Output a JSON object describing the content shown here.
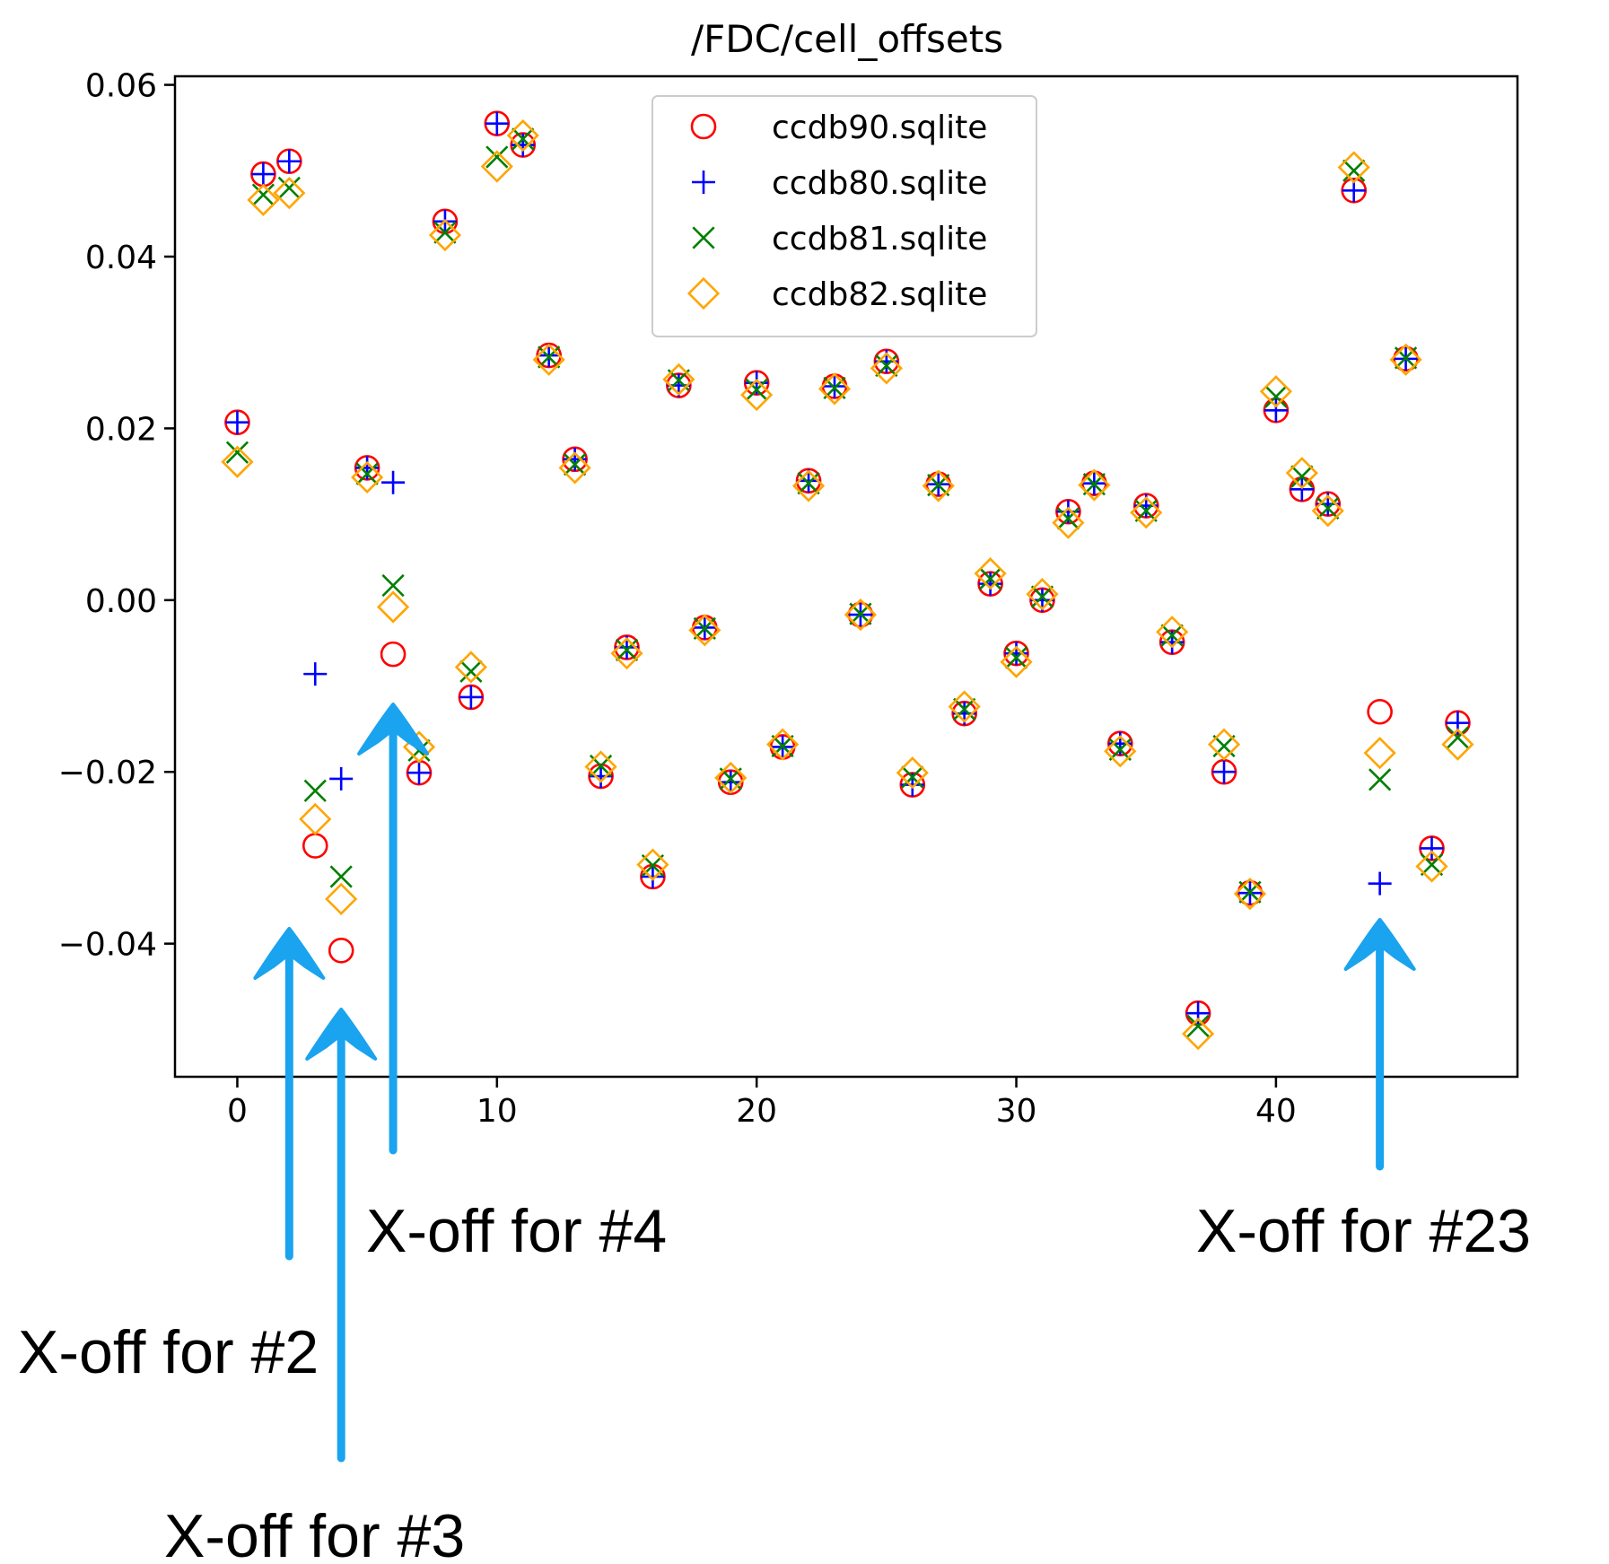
{
  "chart_data": {
    "type": "scatter",
    "title": "/FDC/cell_offsets",
    "xlabel": "",
    "ylabel": "",
    "xlim": [
      -2.4,
      49.3
    ],
    "ylim": [
      -0.0555,
      0.061
    ],
    "xticks": [
      0,
      10,
      20,
      30,
      40
    ],
    "xtick_labels": [
      "0",
      "10",
      "20",
      "30",
      "40"
    ],
    "yticks": [
      -0.04,
      -0.02,
      0.0,
      0.02,
      0.04,
      0.06
    ],
    "ytick_labels": [
      "−0.04",
      "−0.02",
      "0.00",
      "0.02",
      "0.04",
      "0.06"
    ],
    "grid": false,
    "legend_position": "top-center",
    "x": [
      0,
      1,
      2,
      3,
      4,
      5,
      6,
      7,
      8,
      9,
      10,
      11,
      12,
      13,
      14,
      15,
      16,
      17,
      18,
      19,
      20,
      21,
      22,
      23,
      24,
      25,
      26,
      27,
      28,
      29,
      30,
      31,
      32,
      33,
      34,
      35,
      36,
      37,
      38,
      39,
      40,
      41,
      42,
      43,
      44,
      45,
      46,
      47
    ],
    "series": [
      {
        "name": "ccdb90.sqlite",
        "marker": "circle",
        "color": "#ff0000",
        "values": [
          0.0207,
          0.0496,
          0.0511,
          -0.0286,
          -0.0408,
          0.0154,
          -0.0063,
          -0.0201,
          0.0441,
          -0.0113,
          0.0555,
          0.053,
          0.0285,
          0.0164,
          -0.0205,
          -0.0055,
          -0.0322,
          0.025,
          -0.0032,
          -0.0212,
          0.0253,
          -0.0171,
          0.0139,
          0.0249,
          -0.0017,
          0.0278,
          -0.0215,
          0.0135,
          -0.0132,
          0.0019,
          -0.0062,
          0.0,
          0.0103,
          0.0136,
          -0.0167,
          0.011,
          -0.0049,
          -0.0481,
          -0.02,
          -0.0341,
          0.0221,
          0.0129,
          0.0112,
          0.0477,
          -0.013,
          0.0281,
          -0.0289,
          -0.0143
        ]
      },
      {
        "name": "ccdb80.sqlite",
        "marker": "plus",
        "color": "#0000ff",
        "values": [
          0.0207,
          0.0496,
          0.0511,
          -0.0086,
          -0.0208,
          0.0154,
          0.0137,
          -0.0201,
          0.0441,
          -0.0113,
          0.0555,
          0.053,
          0.0285,
          0.0164,
          -0.0205,
          -0.0055,
          -0.0322,
          0.025,
          -0.0032,
          -0.0212,
          0.0253,
          -0.0171,
          0.0139,
          0.0249,
          -0.0017,
          0.0278,
          -0.0215,
          0.0135,
          -0.0132,
          0.0019,
          -0.0062,
          0.0,
          0.0103,
          0.0136,
          -0.0167,
          0.011,
          -0.0049,
          -0.0481,
          -0.02,
          -0.0341,
          0.0221,
          0.0129,
          0.0112,
          0.0477,
          -0.033,
          0.0281,
          -0.0289,
          -0.0143
        ]
      },
      {
        "name": "ccdb81.sqlite",
        "marker": "x",
        "color": "#008000",
        "values": [
          0.0172,
          0.0472,
          0.048,
          -0.0222,
          -0.0322,
          0.0147,
          0.0017,
          -0.0175,
          0.0428,
          -0.0083,
          0.0516,
          0.0537,
          0.0283,
          0.0158,
          -0.0193,
          -0.0058,
          -0.0309,
          0.0256,
          -0.0033,
          -0.0208,
          0.0245,
          -0.017,
          0.0136,
          0.0247,
          -0.0016,
          0.0273,
          -0.0206,
          0.0134,
          -0.0127,
          0.0025,
          -0.0067,
          0.0004,
          0.0095,
          0.0135,
          -0.0174,
          0.0104,
          -0.0041,
          -0.0496,
          -0.017,
          -0.034,
          0.0237,
          0.0144,
          0.0107,
          0.05,
          -0.0209,
          0.0282,
          -0.0308,
          -0.016
        ]
      },
      {
        "name": "ccdb82.sqlite",
        "marker": "diamond",
        "color": "#ffa500",
        "values": [
          0.0161,
          0.0466,
          0.0474,
          -0.0255,
          -0.0348,
          0.0143,
          -0.0008,
          -0.0171,
          0.0425,
          -0.0078,
          0.0505,
          0.0541,
          0.028,
          0.0154,
          -0.0194,
          -0.0062,
          -0.0308,
          0.0257,
          -0.0035,
          -0.0207,
          0.0239,
          -0.0168,
          0.0133,
          0.0246,
          -0.0017,
          0.027,
          -0.0201,
          0.0133,
          -0.0124,
          0.0031,
          -0.0072,
          0.0007,
          0.009,
          0.0134,
          -0.0176,
          0.0102,
          -0.0037,
          -0.0505,
          -0.0168,
          -0.0342,
          0.0243,
          0.0148,
          0.0104,
          0.0504,
          -0.0178,
          0.028,
          -0.031,
          -0.0168
        ]
      }
    ],
    "annotations": [
      {
        "text": "X-off for #2",
        "target_x": 2,
        "arrow_color": "#1aa3ef"
      },
      {
        "text": "X-off for #3",
        "target_x": 4,
        "arrow_color": "#1aa3ef"
      },
      {
        "text": "X-off for #4",
        "target_x": 6,
        "arrow_color": "#1aa3ef"
      },
      {
        "text": "X-off for #23",
        "target_x": 44,
        "arrow_color": "#1aa3ef"
      }
    ]
  }
}
